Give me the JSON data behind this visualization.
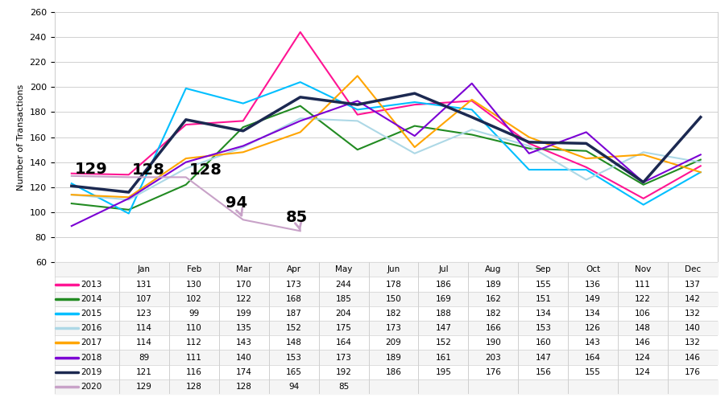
{
  "series_order": [
    "2013",
    "2014",
    "2015",
    "2016",
    "2017",
    "2018",
    "2019",
    "2020"
  ],
  "series": {
    "2013": {
      "color": "#FF1493",
      "data": [
        131,
        130,
        170,
        173,
        244,
        178,
        186,
        189,
        155,
        136,
        111,
        137
      ],
      "lw": 1.5
    },
    "2014": {
      "color": "#228B22",
      "data": [
        107,
        102,
        122,
        168,
        185,
        150,
        169,
        162,
        151,
        149,
        122,
        142
      ],
      "lw": 1.5
    },
    "2015": {
      "color": "#00BFFF",
      "data": [
        123,
        99,
        199,
        187,
        204,
        182,
        188,
        182,
        134,
        134,
        106,
        132
      ],
      "lw": 1.5
    },
    "2016": {
      "color": "#ADD8E6",
      "data": [
        114,
        110,
        135,
        152,
        175,
        173,
        147,
        166,
        153,
        126,
        148,
        140
      ],
      "lw": 1.5
    },
    "2017": {
      "color": "#FFA500",
      "data": [
        114,
        112,
        143,
        148,
        164,
        209,
        152,
        190,
        160,
        143,
        146,
        132
      ],
      "lw": 1.5
    },
    "2018": {
      "color": "#7B00D4",
      "data": [
        89,
        111,
        140,
        153,
        173,
        189,
        161,
        203,
        147,
        164,
        124,
        146
      ],
      "lw": 1.5
    },
    "2019": {
      "color": "#1C2951",
      "data": [
        121,
        116,
        174,
        165,
        192,
        186,
        195,
        176,
        156,
        155,
        124,
        176
      ],
      "lw": 2.5
    },
    "2020": {
      "color": "#C8A2C8",
      "data": [
        129,
        128,
        128,
        94,
        85,
        null,
        null,
        null,
        null,
        null,
        null,
        null
      ],
      "lw": 1.5
    }
  },
  "months": [
    "Jan",
    "Feb",
    "Mar",
    "Apr",
    "May",
    "Jun",
    "Jul",
    "Aug",
    "Sep",
    "Oct",
    "Nov",
    "Dec"
  ],
  "ylim": [
    60,
    260
  ],
  "yticks": [
    60,
    80,
    100,
    120,
    140,
    160,
    180,
    200,
    220,
    240,
    260
  ],
  "ylabel": "Number of Transactions",
  "background_color": "#FFFFFF",
  "grid_color": "#D0D0D0",
  "anno_fontsize": 14,
  "table_fontsize": 7.5,
  "axis_fontsize": 8
}
